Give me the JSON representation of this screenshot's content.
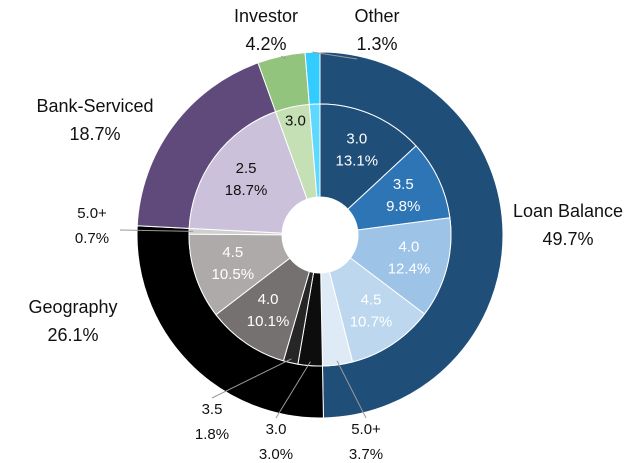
{
  "chart_data": {
    "type": "sunburst",
    "series": [
      {
        "name": "Loan Balance",
        "value": 49.7,
        "value_label": "49.7%",
        "color": "#1f4e79",
        "children": [
          {
            "name": "3.0",
            "value": 13.1,
            "value_label": "13.1%",
            "color": "#1f4e79",
            "label_color": "#ffffff"
          },
          {
            "name": "3.5",
            "value": 9.8,
            "value_label": "9.8%",
            "color": "#2e75b6",
            "label_color": "#ffffff"
          },
          {
            "name": "4.0",
            "value": 12.4,
            "value_label": "12.4%",
            "color": "#9dc3e6",
            "label_color": "#ffffff"
          },
          {
            "name": "4.5",
            "value": 10.7,
            "value_label": "10.7%",
            "color": "#bdd7ee",
            "label_color": "#ffffff"
          },
          {
            "name": "5.0+",
            "value": 3.7,
            "value_label": "3.7%",
            "color": "#deebf7",
            "label_color": "#111111"
          }
        ]
      },
      {
        "name": "Geography",
        "value": 26.1,
        "value_label": "26.1%",
        "color": "#000000",
        "children": [
          {
            "name": "3.0",
            "value": 3.0,
            "value_label": "3.0%",
            "color": "#0d0d0d",
            "label_color": "#111111"
          },
          {
            "name": "3.5",
            "value": 1.8,
            "value_label": "1.8%",
            "color": "#262626",
            "label_color": "#111111"
          },
          {
            "name": "4.0",
            "value": 10.1,
            "value_label": "10.1%",
            "color": "#767171",
            "label_color": "#ffffff"
          },
          {
            "name": "4.5",
            "value": 10.5,
            "value_label": "10.5%",
            "color": "#aeaaaa",
            "label_color": "#ffffff"
          },
          {
            "name": "5.0+",
            "value": 0.7,
            "value_label": "0.7%",
            "color": "#d0cece",
            "label_color": "#111111"
          }
        ]
      },
      {
        "name": "Bank-Serviced",
        "value": 18.7,
        "value_label": "18.7%",
        "color": "#604a7b",
        "children": [
          {
            "name": "2.5",
            "value": 18.7,
            "value_label": "18.7%",
            "color": "#ccc1da",
            "label_color": "#111111"
          }
        ]
      },
      {
        "name": "Investor",
        "value": 4.2,
        "value_label": "4.2%",
        "color": "#93c47d",
        "children": [
          {
            "name": "3.0",
            "value": 4.2,
            "color": "#c5e0b4",
            "label_color": "#111111"
          }
        ]
      },
      {
        "name": "Other",
        "value": 1.3,
        "value_label": "1.3%",
        "color": "#33ccff",
        "children": [
          {
            "name": null,
            "value": 1.3,
            "color": "#5fd8ff"
          }
        ]
      }
    ]
  }
}
